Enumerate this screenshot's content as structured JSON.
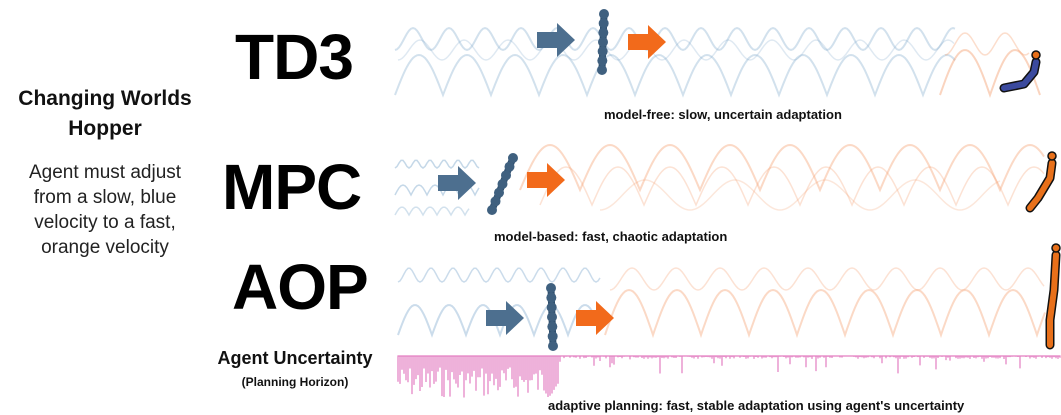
{
  "sidebar": {
    "title_line1": "Changing Worlds",
    "title_line2": "Hopper",
    "desc_line1": "Agent must adjust",
    "desc_line2": "from a slow, blue",
    "desc_line3": "velocity to a fast,",
    "desc_line4": "orange velocity"
  },
  "rows": [
    {
      "name": "TD3",
      "caption": "model-free: slow, uncertain adaptation"
    },
    {
      "name": "MPC",
      "caption": "model-based: fast, chaotic adaptation"
    },
    {
      "name": "AOP",
      "caption": "adaptive planning: fast, stable adaptation using agent's uncertainty"
    }
  ],
  "uncertainty": {
    "label": "Agent Uncertainty",
    "sublabel": "(Planning Horizon)"
  },
  "colors": {
    "slow_blue": "#7ea8cc",
    "fast_orange": "#f5a070",
    "arrow_blue": "#4d6f8f",
    "arrow_orange": "#f26a1b",
    "uncertainty_pink": "#e070bb",
    "hopper_blue": "#3b4a9e",
    "hopper_orange": "#e8701a"
  }
}
